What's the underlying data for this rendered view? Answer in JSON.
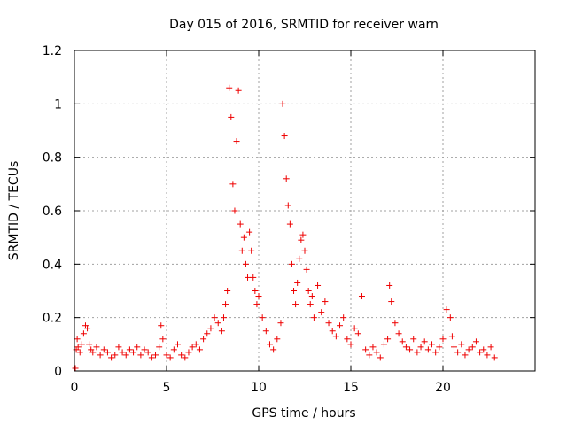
{
  "chart_data": {
    "type": "scatter",
    "title": "Day 015 of 2016, SRMTID for receiver warn",
    "xlabel": "GPS time / hours",
    "ylabel": "SRMTID / TECUs",
    "xlim": [
      0,
      25
    ],
    "ylim": [
      0,
      1.2
    ],
    "x_ticks": [
      0,
      5,
      10,
      15,
      20
    ],
    "x_tick_labels": [
      "0",
      "5",
      "10",
      "15",
      "20"
    ],
    "y_ticks": [
      0,
      0.2,
      0.4,
      0.6,
      0.8,
      1.0,
      1.2
    ],
    "y_tick_labels": [
      "0",
      "0.2",
      "0.4",
      "0.6",
      "0.8",
      "1",
      "1.2"
    ],
    "grid": true,
    "marker": "+",
    "color": "#ee0000",
    "series": [
      {
        "name": "SRMTID",
        "x": [
          0.05,
          0.1,
          0.15,
          0.2,
          0.3,
          0.4,
          0.5,
          0.6,
          0.7,
          0.8,
          0.9,
          1.0,
          1.2,
          1.4,
          1.6,
          1.8,
          2.0,
          2.2,
          2.4,
          2.6,
          2.8,
          3.0,
          3.2,
          3.4,
          3.6,
          3.8,
          4.0,
          4.2,
          4.4,
          4.6,
          4.7,
          4.8,
          5.0,
          5.2,
          5.4,
          5.6,
          5.8,
          6.0,
          6.2,
          6.4,
          6.6,
          6.8,
          7.0,
          7.2,
          7.4,
          7.6,
          7.8,
          8.0,
          8.1,
          8.2,
          8.3,
          8.4,
          8.5,
          8.6,
          8.7,
          8.8,
          8.9,
          9.0,
          9.1,
          9.2,
          9.3,
          9.4,
          9.5,
          9.6,
          9.7,
          9.8,
          9.9,
          10.0,
          10.2,
          10.4,
          10.6,
          10.8,
          11.0,
          11.2,
          11.3,
          11.4,
          11.5,
          11.6,
          11.7,
          11.8,
          11.9,
          12.0,
          12.1,
          12.2,
          12.3,
          12.4,
          12.5,
          12.6,
          12.7,
          12.8,
          12.9,
          13.0,
          13.2,
          13.4,
          13.6,
          13.8,
          14.0,
          14.2,
          14.4,
          14.6,
          14.8,
          15.0,
          15.2,
          15.4,
          15.6,
          15.8,
          16.0,
          16.2,
          16.4,
          16.6,
          16.8,
          17.0,
          17.1,
          17.2,
          17.4,
          17.6,
          17.8,
          18.0,
          18.2,
          18.4,
          18.6,
          18.8,
          19.0,
          19.2,
          19.4,
          19.6,
          19.8,
          20.0,
          20.2,
          20.4,
          20.5,
          20.6,
          20.8,
          21.0,
          21.2,
          21.4,
          21.6,
          21.8,
          22.0,
          22.2,
          22.4,
          22.6,
          22.8
        ],
        "y": [
          0.01,
          0.08,
          0.12,
          0.09,
          0.07,
          0.1,
          0.14,
          0.17,
          0.16,
          0.1,
          0.08,
          0.07,
          0.09,
          0.06,
          0.08,
          0.07,
          0.05,
          0.06,
          0.09,
          0.07,
          0.06,
          0.08,
          0.07,
          0.09,
          0.06,
          0.08,
          0.07,
          0.05,
          0.06,
          0.09,
          0.17,
          0.12,
          0.06,
          0.05,
          0.08,
          0.1,
          0.06,
          0.05,
          0.07,
          0.09,
          0.1,
          0.08,
          0.12,
          0.14,
          0.16,
          0.2,
          0.18,
          0.15,
          0.2,
          0.25,
          0.3,
          1.06,
          0.95,
          0.7,
          0.6,
          0.86,
          1.05,
          0.55,
          0.45,
          0.5,
          0.4,
          0.35,
          0.52,
          0.45,
          0.35,
          0.3,
          0.25,
          0.28,
          0.2,
          0.15,
          0.1,
          0.08,
          0.12,
          0.18,
          1.0,
          0.88,
          0.72,
          0.62,
          0.55,
          0.4,
          0.3,
          0.25,
          0.33,
          0.42,
          0.49,
          0.51,
          0.45,
          0.38,
          0.3,
          0.25,
          0.28,
          0.2,
          0.32,
          0.22,
          0.26,
          0.18,
          0.15,
          0.13,
          0.17,
          0.2,
          0.12,
          0.1,
          0.16,
          0.14,
          0.28,
          0.08,
          0.06,
          0.09,
          0.07,
          0.05,
          0.1,
          0.12,
          0.32,
          0.26,
          0.18,
          0.14,
          0.11,
          0.09,
          0.08,
          0.12,
          0.07,
          0.09,
          0.11,
          0.08,
          0.1,
          0.07,
          0.09,
          0.12,
          0.23,
          0.2,
          0.13,
          0.09,
          0.07,
          0.1,
          0.06,
          0.08,
          0.09,
          0.11,
          0.07,
          0.08,
          0.06,
          0.09,
          0.05
        ]
      }
    ]
  }
}
